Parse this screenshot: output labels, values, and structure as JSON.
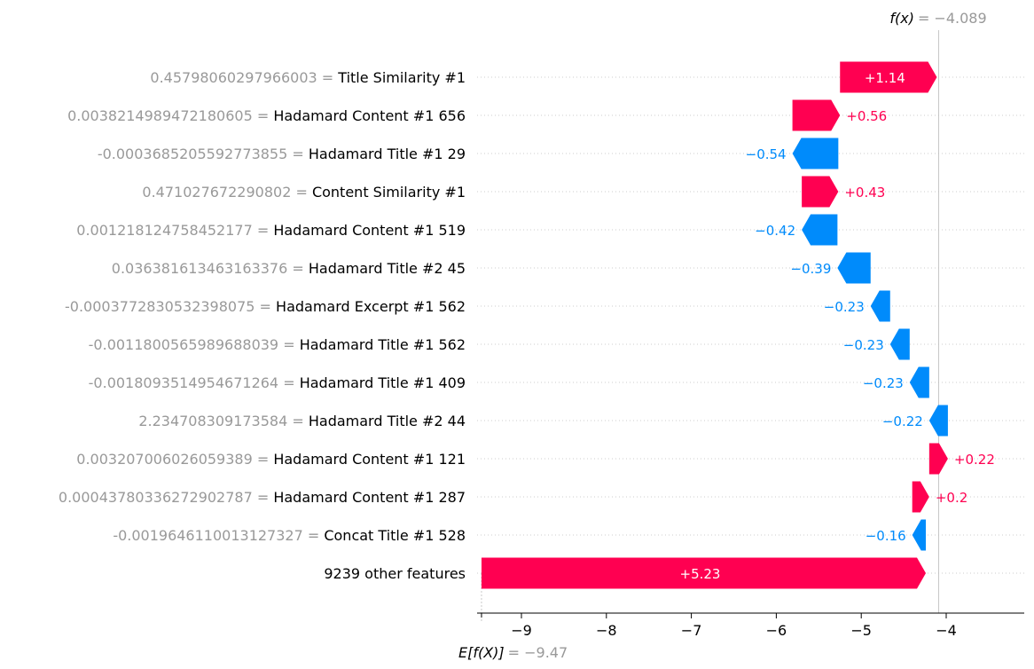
{
  "chart_data": {
    "type": "waterfall",
    "title": "",
    "xlabel": "",
    "ylabel": "",
    "fx": {
      "label": "f(x)",
      "value_text": "= −4.089",
      "value": -4.089
    },
    "efx": {
      "label": "E[f(X)]",
      "value_text": "= −9.47",
      "value": -9.47
    },
    "xlim": [
      -9.5,
      -3.05
    ],
    "xticks": [
      {
        "value": -9,
        "label": "−9"
      },
      {
        "value": -8,
        "label": "−8"
      },
      {
        "value": -7,
        "label": "−7"
      },
      {
        "value": -6,
        "label": "−6"
      },
      {
        "value": -5,
        "label": "−5"
      },
      {
        "value": -4,
        "label": "−4"
      }
    ],
    "rows": [
      {
        "value_label": "0.4579806029796​6003 =",
        "feature": "Title Similarity #1",
        "contribution": 1.14,
        "label": "+1.14"
      },
      {
        "value_label": "0.0038214989472180605 =",
        "feature": "Hadamard Content #1 656",
        "contribution": 0.56,
        "label": "+0.56"
      },
      {
        "value_label": "-0.0003685205592773855 =",
        "feature": "Hadamard Title #1 29",
        "contribution": -0.54,
        "label": "−0.54"
      },
      {
        "value_label": "0.471027672290802 =",
        "feature": "Content Similarity #1",
        "contribution": 0.43,
        "label": "+0.43"
      },
      {
        "value_label": "0.0012181247584521​77 =",
        "feature": "Hadamard Content #1 519",
        "contribution": -0.42,
        "label": "−0.42"
      },
      {
        "value_label": "0.036381613463163376 =",
        "feature": "Hadamard Title #2 45",
        "contribution": -0.39,
        "label": "−0.39"
      },
      {
        "value_label": "-0.0003772830532398075 =",
        "feature": "Hadamard Excerpt #1 562",
        "contribution": -0.23,
        "label": "−0.23"
      },
      {
        "value_label": "-0.0011800565989688039 =",
        "feature": "Hadamard Title #1 562",
        "contribution": -0.23,
        "label": "−0.23"
      },
      {
        "value_label": "-0.0018093514954671264 =",
        "feature": "Hadamard Title #1 409",
        "contribution": -0.23,
        "label": "−0.23"
      },
      {
        "value_label": "2.234708309173584 =",
        "feature": "Hadamard Title #2 44",
        "contribution": -0.22,
        "label": "−0.22"
      },
      {
        "value_label": "0.003207006026059389 =",
        "feature": "Hadamard Content #1 121",
        "contribution": 0.22,
        "label": "+0.22"
      },
      {
        "value_label": "0.00043780336272902787 =",
        "feature": "Hadamard Content #1 287",
        "contribution": 0.2,
        "label": "+0.2"
      },
      {
        "value_label": "-0.0019646110013127327 =",
        "feature": "Concat Title #1 528",
        "contribution": -0.16,
        "label": "−0.16"
      },
      {
        "value_label": "",
        "feature": "9239 other features",
        "contribution": 5.23,
        "label": "+5.23"
      }
    ],
    "colors": {
      "positive": "#ff0051",
      "negative": "#008bfb",
      "value_text": "#999999",
      "feature_text": "#000000",
      "grid": "#cccccc"
    }
  }
}
